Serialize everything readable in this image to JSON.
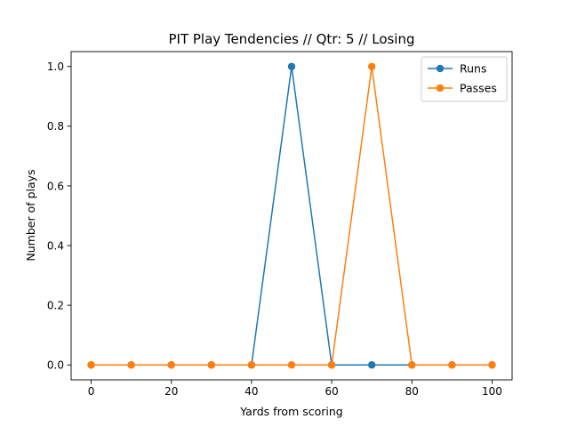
{
  "chart_data": {
    "type": "line",
    "title": "PIT Play Tendencies // Qtr: 5 // Losing",
    "xlabel": "Yards from scoring",
    "ylabel": "Number of plays",
    "x": [
      0,
      10,
      20,
      30,
      40,
      50,
      60,
      70,
      80,
      90,
      100
    ],
    "xlim": [
      -5,
      105
    ],
    "ylim": [
      -0.05,
      1.05
    ],
    "xticks": [
      0,
      20,
      40,
      60,
      80,
      100
    ],
    "yticks": [
      0.0,
      0.2,
      0.4,
      0.6,
      0.8,
      1.0
    ],
    "xtick_labels": [
      "0",
      "20",
      "40",
      "60",
      "80",
      "100"
    ],
    "ytick_labels": [
      "0.0",
      "0.2",
      "0.4",
      "0.6",
      "0.8",
      "1.0"
    ],
    "grid": false,
    "legend_position": "top-right",
    "series": [
      {
        "name": "Runs",
        "color": "#1f77b4",
        "values": [
          0,
          0,
          0,
          0,
          0,
          1,
          0,
          0,
          0,
          0,
          0
        ]
      },
      {
        "name": "Passes",
        "color": "#ff7f0e",
        "values": [
          0,
          0,
          0,
          0,
          0,
          0,
          0,
          1,
          0,
          0,
          0
        ]
      }
    ]
  }
}
